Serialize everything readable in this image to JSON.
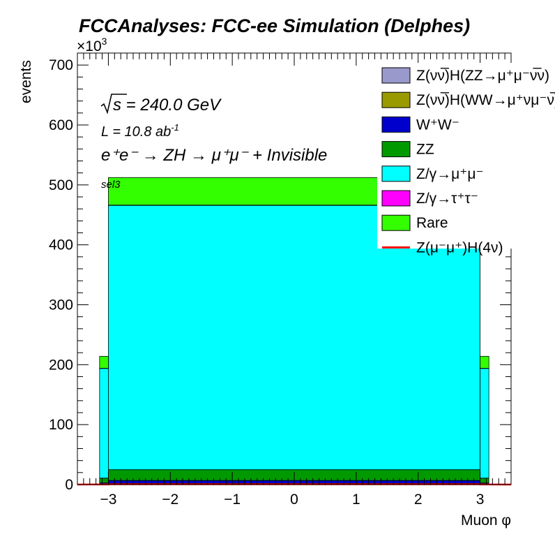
{
  "chart_data": {
    "type": "histogram",
    "stacked": true,
    "title": "FCCAnalyses: FCC-ee Simulation (Delphes)",
    "xlabel": "Muon φ",
    "ylabel": "events",
    "y_multiplier": "×10",
    "y_multiplier_exp": "3",
    "xlim": [
      -3.5,
      3.5
    ],
    "ylim": [
      0,
      720
    ],
    "x_ticks": [
      "−3",
      "−2",
      "−1",
      "0",
      "1",
      "2",
      "3"
    ],
    "y_ticks": [
      "0",
      "100",
      "200",
      "300",
      "400",
      "500",
      "600",
      "700"
    ],
    "annotations": {
      "energy": "s = 240.0 GeV",
      "lumi": "L = 10.8 ab",
      "lumi_exp": "-1",
      "process": "e⁺e⁻ → ZH → μ⁺μ⁻ + Invisible",
      "selection": "sel3"
    },
    "bin_edges": [
      -3.1416,
      -3.0,
      3.0,
      3.1416
    ],
    "bin_values_note": "stack totals per bin in units of 10^3 events",
    "series": [
      {
        "name": "Z(νν̅)H(ZZ→μ⁺μ⁻ν̅ν)",
        "color": "#9999cc",
        "values": [
          0.4,
          1.0,
          0.4
        ]
      },
      {
        "name": "Z(νν̅)H(WW→μ⁺νμ⁻ν̅)",
        "color": "#999900",
        "values": [
          0.3,
          0.8,
          0.3
        ]
      },
      {
        "name": "W⁺W⁻",
        "color": "#0000cc",
        "values": [
          2,
          5,
          2
        ]
      },
      {
        "name": "ZZ",
        "color": "#009900",
        "values": [
          8,
          18,
          8
        ]
      },
      {
        "name": "Z/γ→μ⁺μ⁻",
        "color": "#00ffff",
        "values": [
          183,
          441,
          183
        ]
      },
      {
        "name": "Z/γ→τ⁺τ⁻",
        "color": "#ff00ff",
        "values": [
          0.3,
          0.5,
          0.3
        ]
      },
      {
        "name": "Rare",
        "color": "#33ff00",
        "values": [
          20,
          46,
          20
        ]
      },
      {
        "name": "Z(μ⁻μ⁺)H(4ν)",
        "color": "#ff0000",
        "type": "line",
        "values": [
          0.2,
          0.5,
          0.2
        ]
      }
    ],
    "legend_placement": "top-right"
  }
}
